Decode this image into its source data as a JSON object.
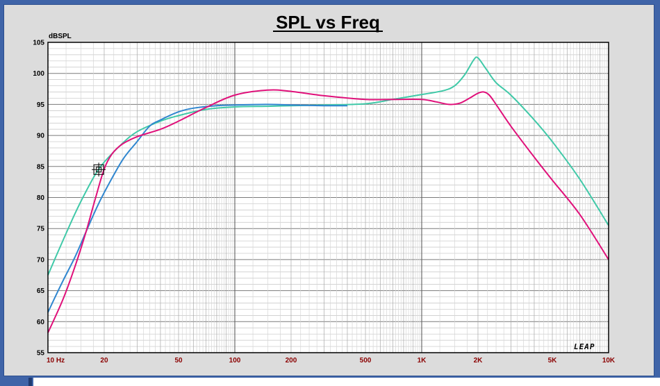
{
  "chart_data": {
    "type": "line",
    "title": "SPL vs Freq",
    "ylabel": "dBSPL",
    "xlabel": "",
    "x_scale": "log",
    "xlim": [
      10,
      10000
    ],
    "ylim": [
      55,
      105
    ],
    "y_ticks": [
      "105",
      "100",
      "95",
      "90",
      "85",
      "80",
      "75",
      "70",
      "65",
      "60",
      "55"
    ],
    "x_ticks": [
      {
        "value": 10,
        "label": "10 Hz"
      },
      {
        "value": 20,
        "label": "20"
      },
      {
        "value": 50,
        "label": "50"
      },
      {
        "value": 100,
        "label": "100"
      },
      {
        "value": 200,
        "label": "200"
      },
      {
        "value": 500,
        "label": "500"
      },
      {
        "value": 1000,
        "label": "1K"
      },
      {
        "value": 2000,
        "label": "2K"
      },
      {
        "value": 5000,
        "label": "5K"
      },
      {
        "value": 10000,
        "label": "10K"
      }
    ],
    "grid": true,
    "logo_text": "LEAP",
    "cursor": {
      "x": 18.7,
      "y": 84.5
    },
    "series": [
      {
        "color": "#40c9a8",
        "points": [
          [
            10,
            67.5
          ],
          [
            12,
            73
          ],
          [
            14,
            77.5
          ],
          [
            16,
            81
          ],
          [
            18,
            83.8
          ],
          [
            20,
            85.7
          ],
          [
            25,
            88.7
          ],
          [
            30,
            90.6
          ],
          [
            40,
            92.3
          ],
          [
            50,
            93.2
          ],
          [
            70,
            94.2
          ],
          [
            100,
            94.6
          ],
          [
            150,
            94.7
          ],
          [
            200,
            94.8
          ],
          [
            300,
            94.9
          ],
          [
            500,
            95.1
          ],
          [
            700,
            95.8
          ],
          [
            1000,
            96.6
          ],
          [
            1300,
            97.2
          ],
          [
            1500,
            98
          ],
          [
            1700,
            99.8
          ],
          [
            1900,
            102.2
          ],
          [
            2000,
            102.5
          ],
          [
            2200,
            100.8
          ],
          [
            2500,
            98.5
          ],
          [
            3000,
            96.5
          ],
          [
            4000,
            92.5
          ],
          [
            5000,
            89
          ],
          [
            7000,
            83
          ],
          [
            10000,
            75.5
          ]
        ]
      },
      {
        "color": "#2f86cf",
        "points": [
          [
            10,
            61.5
          ],
          [
            12,
            66.5
          ],
          [
            14,
            70.5
          ],
          [
            16,
            74.5
          ],
          [
            18,
            78
          ],
          [
            20,
            80.8
          ],
          [
            25,
            86
          ],
          [
            30,
            89
          ],
          [
            35,
            91.5
          ],
          [
            40,
            92.5
          ],
          [
            50,
            93.8
          ],
          [
            60,
            94.4
          ],
          [
            80,
            94.8
          ],
          [
            100,
            94.9
          ],
          [
            150,
            95
          ],
          [
            200,
            94.9
          ],
          [
            300,
            94.8
          ],
          [
            400,
            94.8
          ]
        ]
      },
      {
        "color": "#e0107a",
        "points": [
          [
            10,
            58.2
          ],
          [
            12,
            63.5
          ],
          [
            14,
            69
          ],
          [
            16,
            74.5
          ],
          [
            18,
            80
          ],
          [
            20,
            84.6
          ],
          [
            22,
            87
          ],
          [
            25,
            88.6
          ],
          [
            30,
            89.8
          ],
          [
            40,
            91
          ],
          [
            50,
            92.3
          ],
          [
            70,
            94.5
          ],
          [
            100,
            96.5
          ],
          [
            150,
            97.3
          ],
          [
            200,
            97.1
          ],
          [
            300,
            96.4
          ],
          [
            500,
            95.8
          ],
          [
            700,
            95.8
          ],
          [
            1000,
            95.8
          ],
          [
            1200,
            95.4
          ],
          [
            1400,
            95
          ],
          [
            1600,
            95.2
          ],
          [
            1800,
            96
          ],
          [
            2000,
            96.8
          ],
          [
            2150,
            97
          ],
          [
            2300,
            96.5
          ],
          [
            2500,
            95
          ],
          [
            3000,
            91.5
          ],
          [
            4000,
            86.5
          ],
          [
            5000,
            82.8
          ],
          [
            7000,
            77.3
          ],
          [
            10000,
            70
          ]
        ]
      }
    ]
  }
}
